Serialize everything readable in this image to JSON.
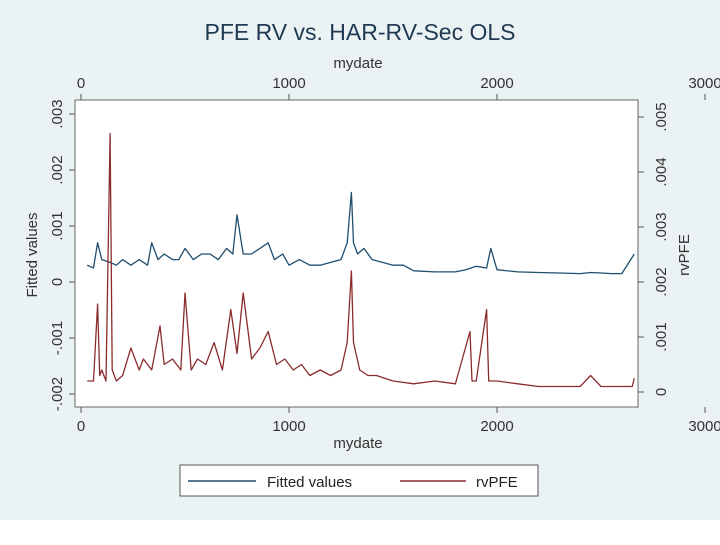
{
  "chart_data": {
    "type": "line",
    "title": "PFE RV vs. HAR-RV-Sec OLS",
    "x_axis_top": {
      "label": "mydate",
      "ticks": [
        "0",
        "1000",
        "2000",
        "3000"
      ],
      "range": [
        0,
        3000
      ]
    },
    "x_axis_bottom": {
      "label": "mydate",
      "ticks": [
        "0",
        "1000",
        "2000",
        "3000"
      ],
      "range": [
        0,
        3000
      ]
    },
    "y_axis_left": {
      "label": "Fitted values",
      "ticks": [
        "-.002",
        "-.001",
        "0",
        ".001",
        ".002",
        ".003"
      ],
      "tick_values": [
        -0.002,
        -0.001,
        0,
        0.001,
        0.002,
        0.003
      ],
      "range": [
        -0.002,
        0.003
      ]
    },
    "y_axis_right": {
      "label": "rvPFE",
      "ticks": [
        "0",
        ".001",
        ".002",
        ".003",
        ".004",
        ".005"
      ],
      "tick_values": [
        0,
        0.001,
        0.002,
        0.003,
        0.004,
        0.005
      ],
      "range": [
        0,
        0.005
      ]
    },
    "series": [
      {
        "name": "Fitted values",
        "axis": "left",
        "color": "#1f4e6e",
        "x": [
          30,
          60,
          80,
          100,
          140,
          170,
          200,
          240,
          280,
          320,
          340,
          370,
          400,
          440,
          470,
          500,
          540,
          580,
          620,
          660,
          700,
          730,
          750,
          780,
          820,
          860,
          900,
          930,
          970,
          1000,
          1050,
          1100,
          1150,
          1200,
          1250,
          1280,
          1300,
          1310,
          1330,
          1360,
          1400,
          1450,
          1500,
          1550,
          1600,
          1700,
          1800,
          1850,
          1900,
          1950,
          1970,
          2000,
          2100,
          2200,
          2300,
          2400,
          2450,
          2500,
          2550,
          2600,
          2660
        ],
        "y": [
          0.0003,
          0.00025,
          0.0007,
          0.0004,
          0.00035,
          0.0003,
          0.0004,
          0.0003,
          0.0004,
          0.0003,
          0.0007,
          0.0004,
          0.0005,
          0.0004,
          0.0004,
          0.0006,
          0.0004,
          0.0005,
          0.0005,
          0.0004,
          0.0006,
          0.0005,
          0.0012,
          0.0005,
          0.0005,
          0.0006,
          0.0007,
          0.0004,
          0.0005,
          0.0003,
          0.0004,
          0.0003,
          0.0003,
          0.00035,
          0.0004,
          0.0007,
          0.0016,
          0.0007,
          0.0005,
          0.0006,
          0.0004,
          0.00035,
          0.0003,
          0.0003,
          0.0002,
          0.00018,
          0.00018,
          0.00022,
          0.00028,
          0.00025,
          0.0006,
          0.00022,
          0.00018,
          0.00017,
          0.00016,
          0.00015,
          0.00017,
          0.00016,
          0.00015,
          0.00015,
          0.0005
        ]
      },
      {
        "name": "rvPFE",
        "axis": "right",
        "color": "#8b2c2c",
        "x": [
          30,
          60,
          80,
          90,
          100,
          120,
          140,
          150,
          170,
          200,
          240,
          280,
          300,
          340,
          380,
          400,
          440,
          480,
          500,
          530,
          560,
          600,
          640,
          680,
          720,
          750,
          780,
          820,
          860,
          900,
          940,
          980,
          1020,
          1060,
          1100,
          1150,
          1200,
          1250,
          1280,
          1300,
          1310,
          1340,
          1380,
          1420,
          1500,
          1600,
          1700,
          1800,
          1870,
          1880,
          1900,
          1950,
          1960,
          2000,
          2100,
          2200,
          2300,
          2400,
          2450,
          2500,
          2600,
          2650,
          2660
        ],
        "y": [
          0.0002,
          0.0002,
          0.0016,
          0.0003,
          0.0004,
          0.0002,
          0.0047,
          0.0004,
          0.0002,
          0.0003,
          0.0008,
          0.0004,
          0.0006,
          0.0004,
          0.0012,
          0.0005,
          0.0006,
          0.0004,
          0.0018,
          0.0004,
          0.0006,
          0.0005,
          0.0009,
          0.0004,
          0.0015,
          0.0007,
          0.0018,
          0.0006,
          0.0008,
          0.0011,
          0.0005,
          0.0006,
          0.0004,
          0.0005,
          0.0003,
          0.0004,
          0.0003,
          0.0004,
          0.0009,
          0.0022,
          0.0009,
          0.0004,
          0.0003,
          0.0003,
          0.0002,
          0.00015,
          0.0002,
          0.00015,
          0.0011,
          0.0002,
          0.0002,
          0.0015,
          0.0002,
          0.0002,
          0.00015,
          0.0001,
          0.0001,
          0.0001,
          0.0003,
          0.0001,
          0.0001,
          0.0001,
          0.00025
        ]
      }
    ],
    "legend": {
      "position": "bottom",
      "items": [
        "Fitted values",
        "rvPFE"
      ]
    },
    "grid": false
  }
}
